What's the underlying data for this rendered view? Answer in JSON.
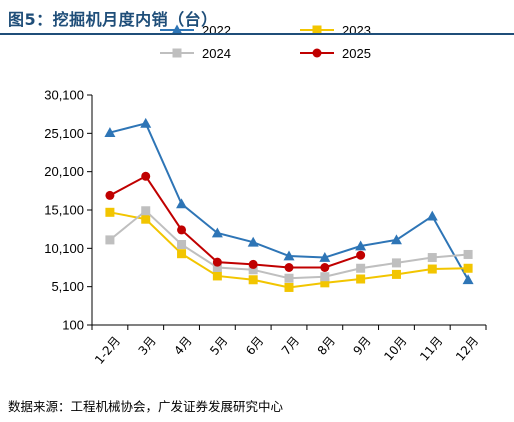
{
  "title": "图5：挖掘机月度内销（台）",
  "source": "数据来源：工程机械协会，广发证券发展研究中心",
  "chart_data": {
    "type": "line",
    "categories": [
      "1-2月",
      "3月",
      "4月",
      "5月",
      "6月",
      "7月",
      "8月",
      "9月",
      "10月",
      "11月",
      "12月"
    ],
    "y_ticks": [
      "100",
      "5,100",
      "10,100",
      "15,100",
      "20,100",
      "25,100",
      "30,100"
    ],
    "y_tick_values": [
      100,
      5100,
      10100,
      15100,
      20100,
      25100,
      30100
    ],
    "ylim": [
      100,
      30100
    ],
    "grid": false,
    "legend_position": "top",
    "series": [
      {
        "name": "2022",
        "color": "#2e75b6",
        "marker": "triangle",
        "values": [
          25200,
          26400,
          15900,
          12100,
          10900,
          9100,
          8900,
          10400,
          11200,
          14300,
          6000
        ]
      },
      {
        "name": "2023",
        "color": "#f2c500",
        "marker": "square",
        "values": [
          14800,
          13900,
          9400,
          6500,
          6000,
          5000,
          5600,
          6100,
          6700,
          7400,
          7500
        ]
      },
      {
        "name": "2024",
        "color": "#bfbfbf",
        "marker": "square",
        "values": [
          11200,
          15000,
          10600,
          7600,
          7300,
          6200,
          6400,
          7500,
          8200,
          8900,
          9300
        ]
      },
      {
        "name": "2025",
        "color": "#c00000",
        "marker": "circle",
        "values": [
          17000,
          19500,
          12500,
          8300,
          8000,
          7600,
          7600,
          9200,
          null,
          null,
          null
        ]
      }
    ]
  }
}
